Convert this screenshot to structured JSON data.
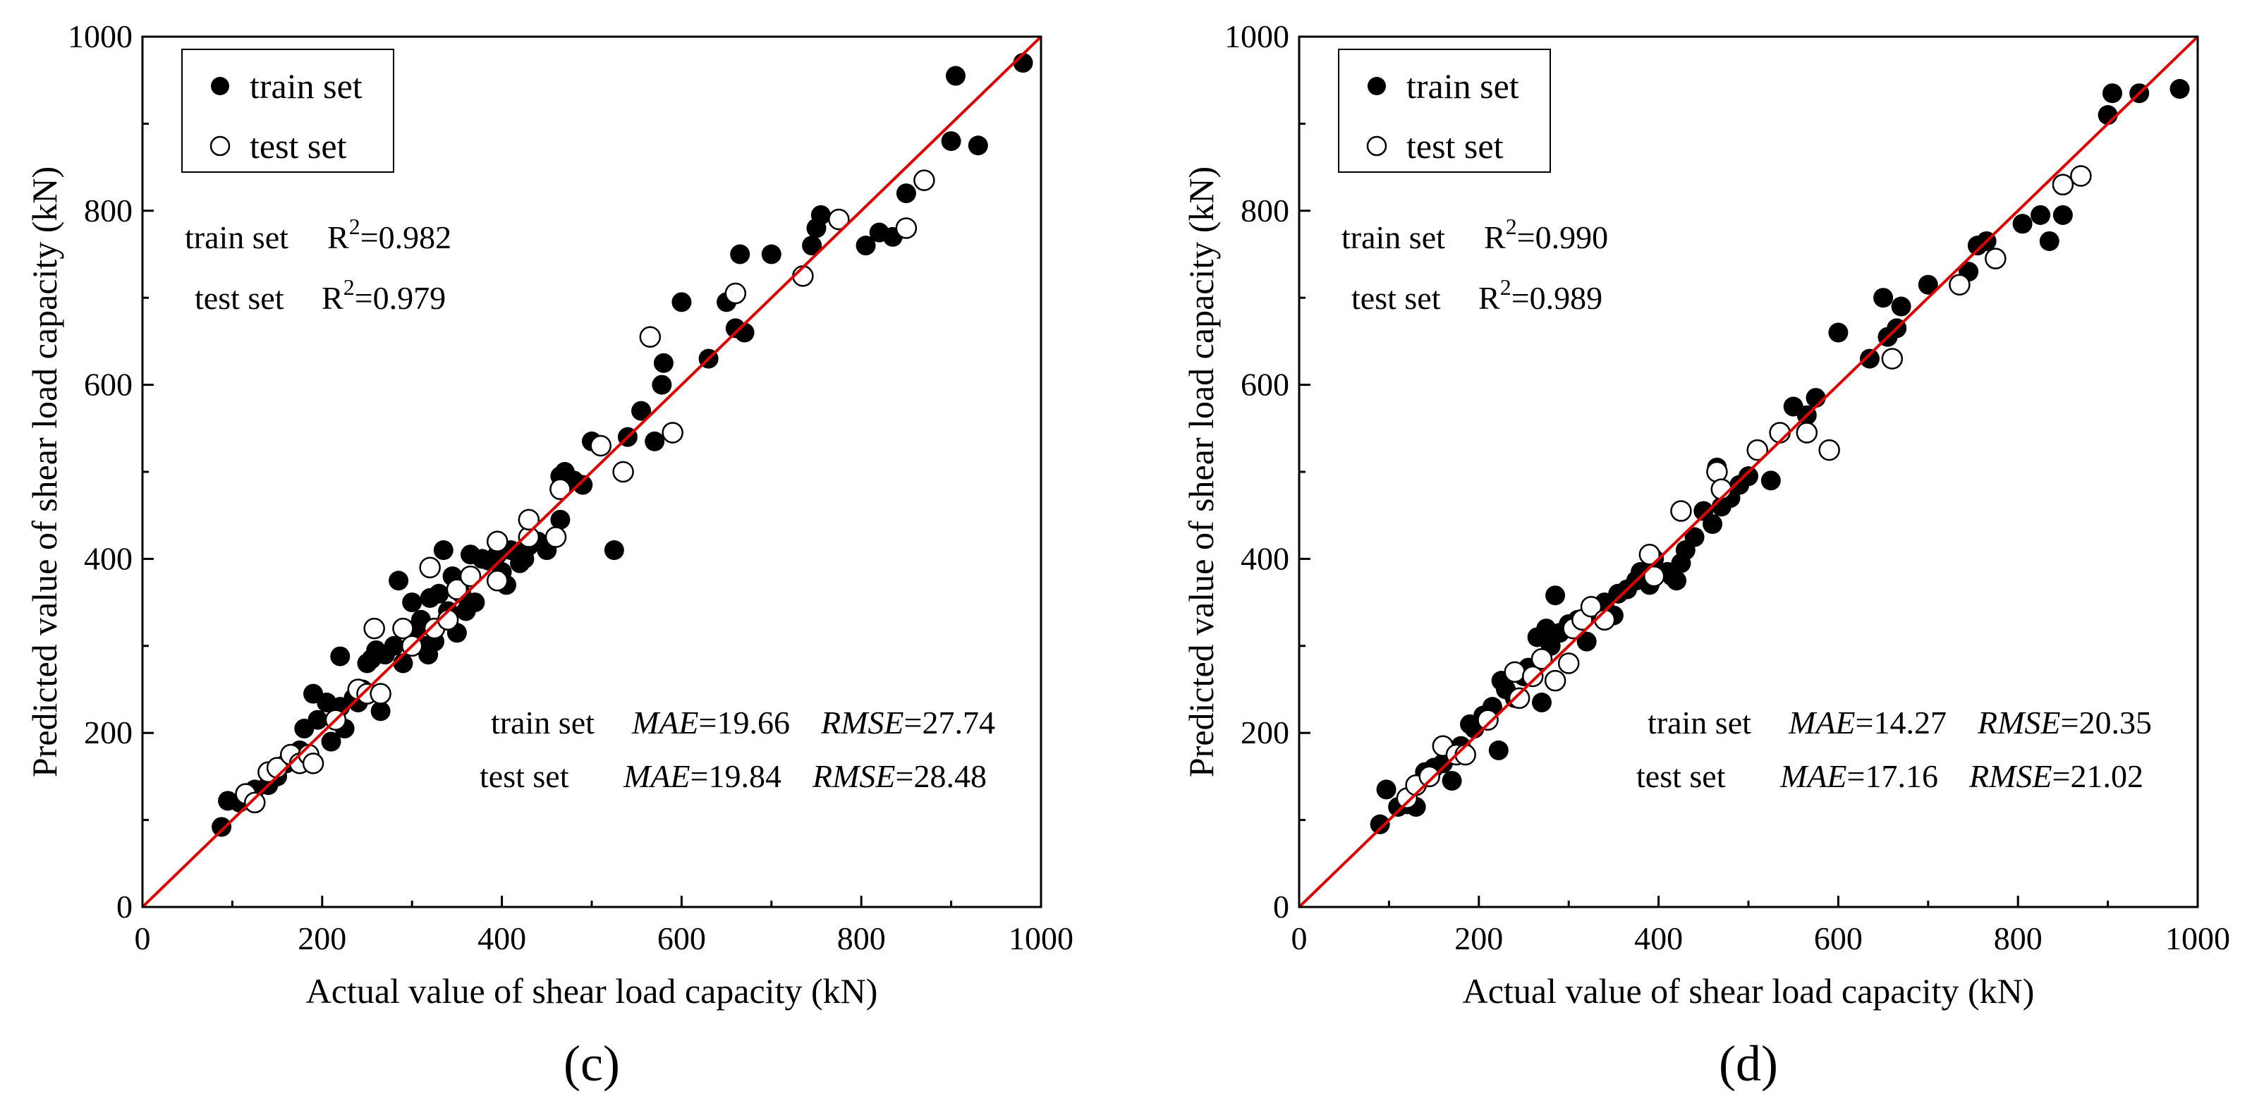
{
  "chart_data": [
    {
      "type": "scatter",
      "panel_label": "(c)",
      "xlabel": "Actual value of shear load capacity (kN)",
      "ylabel": "Predicted value of shear load capacity (kN)",
      "xlim": [
        0,
        1000
      ],
      "ylim": [
        0,
        1000
      ],
      "xticks": [
        "0",
        "200",
        "400",
        "600",
        "800",
        "1000"
      ],
      "yticks": [
        "0",
        "200",
        "400",
        "600",
        "800",
        "1000"
      ],
      "legend": {
        "position": "top-left",
        "entries": [
          "train set",
          "test set"
        ]
      },
      "reference_line": {
        "type": "y=x",
        "color": "#e00000"
      },
      "r2": {
        "train_label": "train set",
        "train_value": "R²=0.982",
        "test_label": "test set",
        "test_value": "R²=0.979"
      },
      "errors": {
        "train_label": "train set",
        "train_mae": "MAE=19.66",
        "train_rmse": "RMSE=27.74",
        "test_label": "test set",
        "test_mae": "MAE=19.84",
        "test_rmse": "RMSE=28.48"
      },
      "series": [
        {
          "name": "train set",
          "marker": "filled-circle",
          "points": [
            [
              88,
              92
            ],
            [
              95,
              122
            ],
            [
              108,
              120
            ],
            [
              125,
              135
            ],
            [
              140,
              140
            ],
            [
              150,
              150
            ],
            [
              160,
              165
            ],
            [
              175,
              180
            ],
            [
              180,
              205
            ],
            [
              190,
              245
            ],
            [
              195,
              215
            ],
            [
              205,
              235
            ],
            [
              210,
              190
            ],
            [
              220,
              230
            ],
            [
              220,
              288
            ],
            [
              225,
              205
            ],
            [
              235,
              240
            ],
            [
              240,
              235
            ],
            [
              245,
              250
            ],
            [
              250,
              280
            ],
            [
              255,
              285
            ],
            [
              260,
              295
            ],
            [
              265,
              225
            ],
            [
              270,
              290
            ],
            [
              280,
              300
            ],
            [
              285,
              375
            ],
            [
              290,
              280
            ],
            [
              300,
              350
            ],
            [
              305,
              320
            ],
            [
              310,
              330
            ],
            [
              315,
              300
            ],
            [
              318,
              290
            ],
            [
              320,
              355
            ],
            [
              325,
              305
            ],
            [
              330,
              360
            ],
            [
              335,
              410
            ],
            [
              340,
              340
            ],
            [
              345,
              380
            ],
            [
              350,
              315
            ],
            [
              355,
              360
            ],
            [
              360,
              340
            ],
            [
              365,
              405
            ],
            [
              370,
              350
            ],
            [
              378,
              400
            ],
            [
              385,
              398
            ],
            [
              395,
              405
            ],
            [
              400,
              385
            ],
            [
              405,
              370
            ],
            [
              410,
              410
            ],
            [
              420,
              395
            ],
            [
              425,
              400
            ],
            [
              430,
              415
            ],
            [
              440,
              420
            ],
            [
              450,
              410
            ],
            [
              460,
              425
            ],
            [
              465,
              445
            ],
            [
              465,
              495
            ],
            [
              470,
              500
            ],
            [
              480,
              490
            ],
            [
              490,
              485
            ],
            [
              500,
              535
            ],
            [
              510,
              530
            ],
            [
              525,
              410
            ],
            [
              540,
              540
            ],
            [
              555,
              570
            ],
            [
              570,
              535
            ],
            [
              578,
              600
            ],
            [
              580,
              625
            ],
            [
              600,
              695
            ],
            [
              630,
              630
            ],
            [
              650,
              695
            ],
            [
              660,
              665
            ],
            [
              665,
              750
            ],
            [
              670,
              660
            ],
            [
              700,
              750
            ],
            [
              745,
              760
            ],
            [
              750,
              780
            ],
            [
              755,
              795
            ],
            [
              805,
              760
            ],
            [
              820,
              775
            ],
            [
              835,
              770
            ],
            [
              850,
              820
            ],
            [
              900,
              880
            ],
            [
              905,
              955
            ],
            [
              930,
              875
            ],
            [
              980,
              970
            ]
          ]
        },
        {
          "name": "test set",
          "marker": "open-circle",
          "points": [
            [
              115,
              130
            ],
            [
              125,
              120
            ],
            [
              140,
              155
            ],
            [
              150,
              160
            ],
            [
              165,
              175
            ],
            [
              175,
              165
            ],
            [
              185,
              175
            ],
            [
              190,
              165
            ],
            [
              215,
              215
            ],
            [
              240,
              250
            ],
            [
              250,
              245
            ],
            [
              258,
              320
            ],
            [
              265,
              245
            ],
            [
              290,
              320
            ],
            [
              300,
              300
            ],
            [
              320,
              390
            ],
            [
              325,
              320
            ],
            [
              340,
              330
            ],
            [
              350,
              365
            ],
            [
              365,
              380
            ],
            [
              395,
              420
            ],
            [
              395,
              375
            ],
            [
              430,
              425
            ],
            [
              430,
              445
            ],
            [
              460,
              425
            ],
            [
              465,
              480
            ],
            [
              510,
              530
            ],
            [
              535,
              500
            ],
            [
              565,
              655
            ],
            [
              590,
              545
            ],
            [
              660,
              705
            ],
            [
              735,
              725
            ],
            [
              775,
              790
            ],
            [
              850,
              780
            ],
            [
              870,
              835
            ]
          ]
        }
      ]
    },
    {
      "type": "scatter",
      "panel_label": "(d)",
      "xlabel": "Actual value of shear load capacity (kN)",
      "ylabel": "Predicted value of shear load capacity (kN)",
      "xlim": [
        0,
        1000
      ],
      "ylim": [
        0,
        1000
      ],
      "xticks": [
        "0",
        "200",
        "400",
        "600",
        "800",
        "1000"
      ],
      "yticks": [
        "0",
        "200",
        "400",
        "600",
        "800",
        "1000"
      ],
      "legend": {
        "position": "top-left",
        "entries": [
          "train set",
          "test set"
        ]
      },
      "reference_line": {
        "type": "y=x",
        "color": "#e00000"
      },
      "r2": {
        "train_label": "train set",
        "train_value": "R²=0.990",
        "test_label": "test set",
        "test_value": "R²=0.989"
      },
      "errors": {
        "train_label": "train set",
        "train_mae": "MAE=14.27",
        "train_rmse": "RMSE=20.35",
        "test_label": "test set",
        "test_mae": "MAE=17.16",
        "test_rmse": "RMSE=21.02"
      },
      "series": [
        {
          "name": "train set",
          "marker": "filled-circle",
          "points": [
            [
              90,
              95
            ],
            [
              97,
              135
            ],
            [
              110,
              115
            ],
            [
              120,
              118
            ],
            [
              130,
              115
            ],
            [
              140,
              155
            ],
            [
              150,
              160
            ],
            [
              160,
              165
            ],
            [
              170,
              145
            ],
            [
              180,
              185
            ],
            [
              190,
              210
            ],
            [
              195,
              205
            ],
            [
              205,
              220
            ],
            [
              215,
              230
            ],
            [
              222,
              180
            ],
            [
              225,
              260
            ],
            [
              230,
              250
            ],
            [
              240,
              240
            ],
            [
              250,
              265
            ],
            [
              255,
              275
            ],
            [
              265,
              310
            ],
            [
              270,
              235
            ],
            [
              275,
              320
            ],
            [
              280,
              300
            ],
            [
              285,
              358
            ],
            [
              290,
              315
            ],
            [
              300,
              325
            ],
            [
              310,
              330
            ],
            [
              320,
              305
            ],
            [
              330,
              340
            ],
            [
              340,
              350
            ],
            [
              350,
              335
            ],
            [
              355,
              360
            ],
            [
              365,
              365
            ],
            [
              375,
              375
            ],
            [
              380,
              385
            ],
            [
              390,
              370
            ],
            [
              395,
              400
            ],
            [
              400,
              385
            ],
            [
              410,
              385
            ],
            [
              415,
              380
            ],
            [
              420,
              375
            ],
            [
              425,
              395
            ],
            [
              430,
              410
            ],
            [
              440,
              425
            ],
            [
              450,
              455
            ],
            [
              460,
              440
            ],
            [
              465,
              505
            ],
            [
              470,
              460
            ],
            [
              480,
              470
            ],
            [
              490,
              485
            ],
            [
              500,
              495
            ],
            [
              525,
              490
            ],
            [
              550,
              575
            ],
            [
              565,
              565
            ],
            [
              575,
              585
            ],
            [
              600,
              660
            ],
            [
              635,
              630
            ],
            [
              650,
              700
            ],
            [
              655,
              655
            ],
            [
              665,
              665
            ],
            [
              670,
              690
            ],
            [
              700,
              715
            ],
            [
              745,
              730
            ],
            [
              755,
              760
            ],
            [
              765,
              765
            ],
            [
              805,
              785
            ],
            [
              825,
              795
            ],
            [
              835,
              765
            ],
            [
              850,
              795
            ],
            [
              900,
              910
            ],
            [
              905,
              935
            ],
            [
              935,
              935
            ],
            [
              980,
              940
            ]
          ]
        },
        {
          "name": "test set",
          "marker": "open-circle",
          "points": [
            [
              120,
              125
            ],
            [
              130,
              140
            ],
            [
              145,
              150
            ],
            [
              160,
              185
            ],
            [
              175,
              175
            ],
            [
              185,
              175
            ],
            [
              210,
              215
            ],
            [
              240,
              270
            ],
            [
              245,
              240
            ],
            [
              260,
              265
            ],
            [
              270,
              285
            ],
            [
              285,
              260
            ],
            [
              300,
              280
            ],
            [
              305,
              320
            ],
            [
              315,
              330
            ],
            [
              325,
              345
            ],
            [
              340,
              330
            ],
            [
              390,
              405
            ],
            [
              395,
              380
            ],
            [
              425,
              455
            ],
            [
              465,
              500
            ],
            [
              470,
              480
            ],
            [
              510,
              525
            ],
            [
              535,
              545
            ],
            [
              565,
              545
            ],
            [
              590,
              525
            ],
            [
              660,
              630
            ],
            [
              735,
              715
            ],
            [
              775,
              745
            ],
            [
              850,
              830
            ],
            [
              870,
              840
            ]
          ]
        }
      ]
    }
  ]
}
